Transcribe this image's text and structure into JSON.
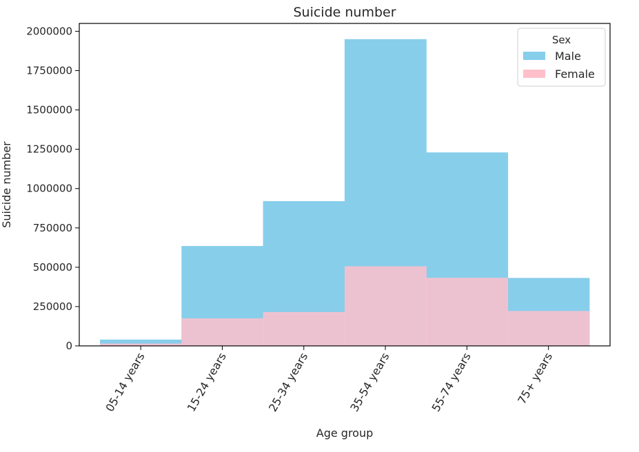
{
  "chart_data": {
    "type": "bar",
    "title": "Suicide number",
    "xlabel": "Age group",
    "ylabel": "Suicide number",
    "categories": [
      "05-14 years",
      "15-24 years",
      "25-34 years",
      "35-54 years",
      "55-74 years",
      "75+ years"
    ],
    "series": [
      {
        "name": "Male",
        "color": "#87ceeb",
        "values": [
          40000,
          635000,
          920000,
          1950000,
          1230000,
          432000
        ]
      },
      {
        "name": "Female",
        "color": "#ffc0cb",
        "values": [
          15000,
          175000,
          215000,
          506000,
          433000,
          222000
        ]
      }
    ],
    "stacked": false,
    "overlap": true,
    "ylim": [
      0,
      2050000
    ],
    "yticks": [
      0,
      250000,
      500000,
      750000,
      1000000,
      1250000,
      1500000,
      1750000,
      2000000
    ],
    "ytick_labels": [
      "0",
      "250000",
      "500000",
      "750000",
      "1000000",
      "1250000",
      "1500000",
      "1750000",
      "2000000"
    ],
    "grid": false,
    "legend": {
      "title": "Sex",
      "position": "top-right"
    },
    "xtick_rotation_deg": 60
  }
}
